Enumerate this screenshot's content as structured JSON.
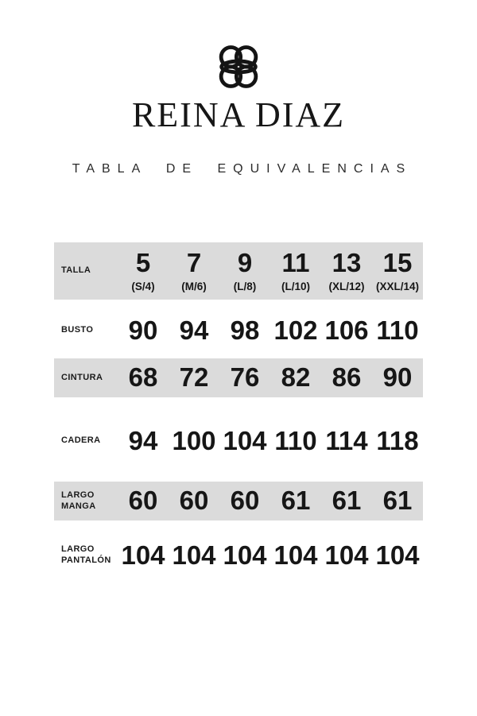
{
  "brand": {
    "name": "REINA DIAZ",
    "logo_icon": "knot-monogram-icon"
  },
  "heading": "TABLA DE EQUIVALENCIAS",
  "colors": {
    "background": "#ffffff",
    "row_shade": "#dbdbdb",
    "text": "#1b1b1b"
  },
  "table": {
    "header": {
      "label": "TALLA",
      "sizes": [
        {
          "number": "5",
          "equiv": "(S/4)"
        },
        {
          "number": "7",
          "equiv": "(M/6)"
        },
        {
          "number": "9",
          "equiv": "(L/8)"
        },
        {
          "number": "11",
          "equiv": "(L/10)"
        },
        {
          "number": "13",
          "equiv": "(XL/12)"
        },
        {
          "number": "15",
          "equiv": "(XXL/14)"
        }
      ]
    },
    "rows": [
      {
        "label": "BUSTO",
        "shaded": false,
        "values": [
          "90",
          "94",
          "98",
          "102",
          "106",
          "110"
        ]
      },
      {
        "label": "CINTURA",
        "shaded": true,
        "values": [
          "68",
          "72",
          "76",
          "82",
          "86",
          "90"
        ]
      },
      {
        "label": "CADERA",
        "shaded": false,
        "values": [
          "94",
          "100",
          "104",
          "110",
          "114",
          "118"
        ]
      },
      {
        "label": "LARGO\nMANGA",
        "shaded": true,
        "values": [
          "60",
          "60",
          "60",
          "61",
          "61",
          "61"
        ]
      },
      {
        "label": "LARGO\nPANTALÓN",
        "shaded": false,
        "values": [
          "104",
          "104",
          "104",
          "104",
          "104",
          "104"
        ]
      }
    ]
  },
  "chart_data": {
    "type": "table",
    "title": "TABLA DE EQUIVALENCIAS",
    "columns": [
      "TALLA",
      "5 (S/4)",
      "7 (M/6)",
      "9 (L/8)",
      "11 (L/10)",
      "13 (XL/12)",
      "15 (XXL/14)"
    ],
    "rows": [
      [
        "BUSTO",
        90,
        94,
        98,
        102,
        106,
        110
      ],
      [
        "CINTURA",
        68,
        72,
        76,
        82,
        86,
        90
      ],
      [
        "CADERA",
        94,
        100,
        104,
        110,
        114,
        118
      ],
      [
        "LARGO MANGA",
        60,
        60,
        60,
        61,
        61,
        61
      ],
      [
        "LARGO PANTALÓN",
        104,
        104,
        104,
        104,
        104,
        104
      ]
    ]
  }
}
